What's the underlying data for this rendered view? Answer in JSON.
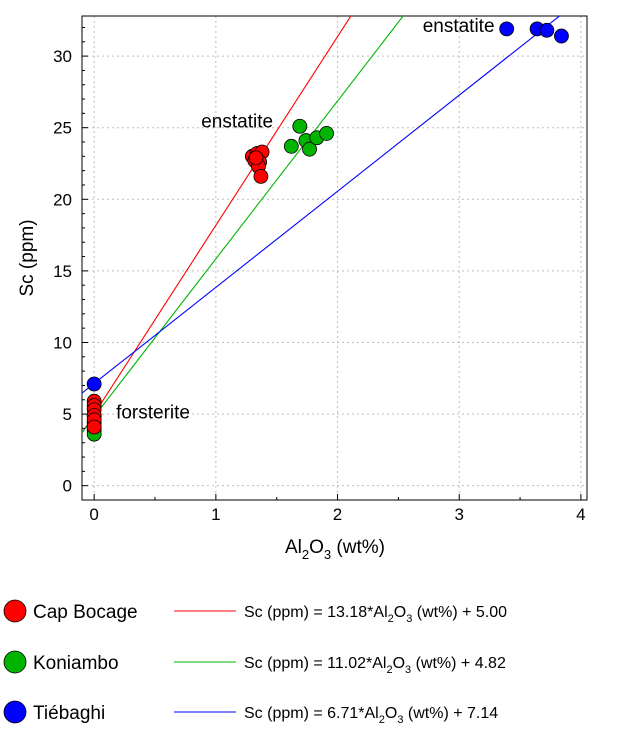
{
  "chart_data": {
    "type": "scatter",
    "xlabel": {
      "base": "Al",
      "sub1": "2",
      "mid": "O",
      "sub2": "3",
      "tail": " (wt%)"
    },
    "ylabel": "Sc (ppm)",
    "xlim": [
      -0.1,
      4.05
    ],
    "ylim": [
      -1,
      32.8
    ],
    "xticks": [
      0,
      1,
      2,
      3,
      4
    ],
    "yticks": [
      0,
      5,
      10,
      15,
      20,
      25,
      30
    ],
    "x_tick_labels": [
      "0",
      "1",
      "2",
      "3",
      "4"
    ],
    "y_tick_labels": [
      "0",
      "5",
      "10",
      "15",
      "20",
      "25",
      "30"
    ],
    "grid": true,
    "annotations": [
      {
        "text": "enstatite",
        "x": 1.47,
        "y": 25.0
      },
      {
        "text": "enstatite",
        "x": 3.29,
        "y": 31.7
      },
      {
        "text": "forsterite",
        "x": 0.18,
        "y": 4.7
      }
    ],
    "series": [
      {
        "name": "Cap Bocage",
        "color": "#ff0000",
        "points": [
          [
            0,
            5.9
          ],
          [
            0,
            5.6
          ],
          [
            0,
            5.3
          ],
          [
            0,
            4.9
          ],
          [
            0,
            4.6
          ],
          [
            0,
            4.1
          ],
          [
            1.3,
            23.0
          ],
          [
            1.34,
            23.2
          ],
          [
            1.38,
            23.3
          ],
          [
            1.32,
            22.7
          ],
          [
            1.36,
            22.6
          ],
          [
            1.35,
            22.3
          ],
          [
            1.37,
            21.6
          ],
          [
            1.33,
            22.9
          ]
        ],
        "fit": {
          "slope": 13.18,
          "intercept": 5.0,
          "equation": {
            "pre": "Sc (ppm) = 13.18*Al",
            "s1": "2",
            "mid": "O",
            "s2": "3",
            "post": " (wt%) + 5.00"
          }
        }
      },
      {
        "name": "Koniambo",
        "color": "#00b400",
        "points": [
          [
            0,
            4.9
          ],
          [
            0,
            4.4
          ],
          [
            0,
            4.1
          ],
          [
            0,
            3.9
          ],
          [
            0,
            3.6
          ],
          [
            1.69,
            25.1
          ],
          [
            1.62,
            23.7
          ],
          [
            1.74,
            24.1
          ],
          [
            1.77,
            23.5
          ],
          [
            1.83,
            24.3
          ],
          [
            1.91,
            24.6
          ]
        ],
        "fit": {
          "slope": 11.02,
          "intercept": 4.82,
          "equation": {
            "pre": "Sc (ppm) = 11.02*Al",
            "s1": "2",
            "mid": "O",
            "s2": "3",
            "post": " (wt%) + 4.82"
          }
        }
      },
      {
        "name": "Tiébaghi",
        "color": "#0000ff",
        "points": [
          [
            0,
            7.1
          ],
          [
            3.39,
            31.9
          ],
          [
            3.64,
            31.9
          ],
          [
            3.72,
            31.8
          ],
          [
            3.84,
            31.4
          ]
        ],
        "fit": {
          "slope": 6.71,
          "intercept": 7.14,
          "equation": {
            "pre": "Sc (ppm) = 6.71*Al",
            "s1": "2",
            "mid": "O",
            "s2": "3",
            "post": " (wt%) + 7.14"
          }
        }
      }
    ]
  }
}
